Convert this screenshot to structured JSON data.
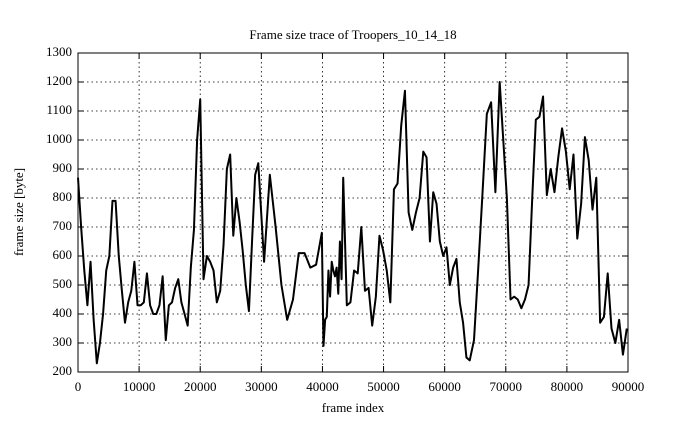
{
  "chart_data": {
    "type": "line",
    "title": "Frame size trace of Troopers_10_14_18",
    "x_label": "frame index",
    "y_label": "frame size [byte]",
    "color": "#000000",
    "grid": true,
    "xlim": [
      0,
      90000
    ],
    "ylim": [
      200,
      1300
    ],
    "xticks": [
      0,
      10000,
      20000,
      30000,
      40000,
      50000,
      60000,
      70000,
      80000,
      90000
    ],
    "yticks": [
      200,
      300,
      400,
      500,
      600,
      700,
      800,
      900,
      1000,
      1100,
      1200,
      1300
    ],
    "x": [
      0,
      510,
      1030,
      1540,
      2050,
      2560,
      3080,
      3590,
      4100,
      4620,
      5130,
      5640,
      6150,
      6670,
      7180,
      7690,
      8210,
      8720,
      9230,
      9740,
      10260,
      10770,
      11280,
      11800,
      12310,
      12820,
      13330,
      13850,
      14360,
      14870,
      15380,
      15900,
      16410,
      16920,
      17440,
      17950,
      18460,
      18970,
      19490,
      20000,
      20540,
      21090,
      21630,
      22180,
      22720,
      23270,
      23820,
      24360,
      24900,
      25410,
      25920,
      26430,
      26940,
      27460,
      27970,
      28480,
      28990,
      29500,
      30450,
      31390,
      32340,
      33290,
      34230,
      35180,
      36120,
      37070,
      38020,
      38960,
      39900,
      40170,
      40440,
      40710,
      40980,
      41250,
      41520,
      41780,
      42050,
      42320,
      42590,
      42860,
      43130,
      43400,
      43990,
      44580,
      45180,
      45770,
      46360,
      46960,
      47550,
      48140,
      48740,
      49330,
      49920,
      50520,
      51110,
      51700,
      52290,
      52890,
      53500,
      54100,
      54700,
      55300,
      55900,
      56500,
      57040,
      57590,
      58130,
      58670,
      59210,
      59760,
      60300,
      60840,
      61390,
      61930,
      62470,
      63010,
      63560,
      64100,
      64800,
      65500,
      66200,
      66900,
      67600,
      68300,
      69000,
      69590,
      70180,
      70780,
      71370,
      71960,
      72550,
      73140,
      73730,
      74330,
      74920,
      75510,
      76100,
      76720,
      77350,
      77970,
      78590,
      79210,
      79840,
      80460,
      81080,
      81700,
      82330,
      82950,
      83570,
      84190,
      84810,
      85440,
      86060,
      86680,
      87300,
      87930,
      88550,
      89170,
      89800
    ],
    "values": [
      870,
      700,
      550,
      430,
      580,
      380,
      230,
      300,
      400,
      550,
      600,
      790,
      790,
      600,
      480,
      370,
      440,
      480,
      580,
      430,
      430,
      440,
      540,
      430,
      400,
      400,
      430,
      530,
      310,
      430,
      440,
      490,
      520,
      440,
      400,
      360,
      560,
      690,
      1000,
      1140,
      520,
      600,
      580,
      550,
      440,
      480,
      640,
      900,
      950,
      670,
      800,
      720,
      620,
      500,
      410,
      650,
      880,
      920,
      580,
      880,
      700,
      500,
      380,
      450,
      610,
      610,
      560,
      570,
      680,
      290,
      380,
      390,
      550,
      460,
      580,
      550,
      530,
      560,
      470,
      650,
      520,
      870,
      430,
      440,
      550,
      540,
      700,
      480,
      490,
      360,
      460,
      670,
      620,
      550,
      440,
      830,
      850,
      1050,
      1170,
      750,
      690,
      750,
      800,
      960,
      940,
      650,
      820,
      780,
      650,
      600,
      630,
      500,
      560,
      590,
      440,
      370,
      250,
      240,
      310,
      560,
      820,
      1090,
      1130,
      820,
      1200,
      1000,
      800,
      450,
      460,
      450,
      420,
      450,
      500,
      800,
      1070,
      1080,
      1150,
      810,
      900,
      820,
      940,
      1040,
      960,
      830,
      950,
      660,
      780,
      1010,
      930,
      760,
      870,
      370,
      390,
      540,
      350,
      300,
      380,
      260,
      350
    ]
  }
}
